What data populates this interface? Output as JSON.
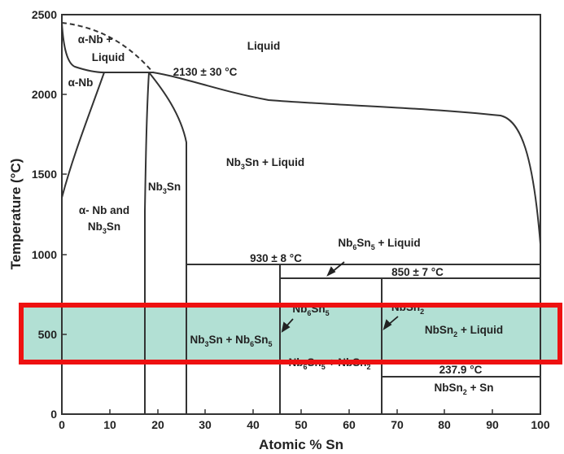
{
  "axes": {
    "xlabel": "Atomic % Sn",
    "ylabel": "Temperature (°C)",
    "xticks": [
      "0",
      "10",
      "20",
      "30",
      "40",
      "50",
      "60",
      "70",
      "80",
      "90",
      "100"
    ],
    "yticks": [
      "0",
      "500",
      "1000",
      "1500",
      "2000",
      "2500"
    ],
    "xlim": [
      0,
      100
    ],
    "ylim": [
      0,
      2500
    ]
  },
  "labels": {
    "liquid": "Liquid",
    "alpha_nb_liquid_1": "α-Nb +",
    "alpha_nb_liquid_2": "Liquid",
    "alpha_nb": "α-Nb",
    "t_2130": "2130 ± 30 °C",
    "nb3sn_liquid": {
      "a": "Nb",
      "a_sub": "3",
      "b": "Sn + Liquid"
    },
    "nb3sn_phase": {
      "a": "Nb",
      "a_sub": "3",
      "b": "Sn"
    },
    "alpha_nb_and_1": "α- Nb and",
    "alpha_nb_and_2": {
      "a": "Nb",
      "a_sub": "3",
      "b": "Sn"
    },
    "nb6sn5_liquid": {
      "a": "Nb",
      "a_sub": "6",
      "b": "Sn",
      "b_sub": "5",
      "c": " + Liquid"
    },
    "t_930": "930 ± 8 °C",
    "t_850": "850 ± 7 °C",
    "nb6sn5_phase": {
      "a": "Nb",
      "a_sub": "6",
      "b": "Sn",
      "b_sub": "5"
    },
    "nbsn2_phase": {
      "a": "NbSn",
      "a_sub": "2"
    },
    "nb3sn_nb6sn5": {
      "a": "Nb",
      "a_sub": "3",
      "b": "Sn + Nb",
      "b_sub": "6",
      "c": "Sn",
      "c_sub": "5"
    },
    "nb6sn5_nbsn2": {
      "a": "Nb",
      "a_sub": "6",
      "b": "Sn",
      "b_sub": "5",
      "c": " + NbSn",
      "c_sub": "2"
    },
    "nbsn2_liquid": {
      "a": "NbSn",
      "a_sub": "2",
      "b": " + Liquid"
    },
    "t_237": "237.9 °C",
    "nbsn2_sn": {
      "a": "NbSn",
      "a_sub": "2",
      "b": " + Sn"
    }
  },
  "highlight": {
    "fill": "#b2e0d4",
    "border": "#ee1111"
  },
  "colors": {
    "line": "#333333",
    "text": "#222222"
  }
}
